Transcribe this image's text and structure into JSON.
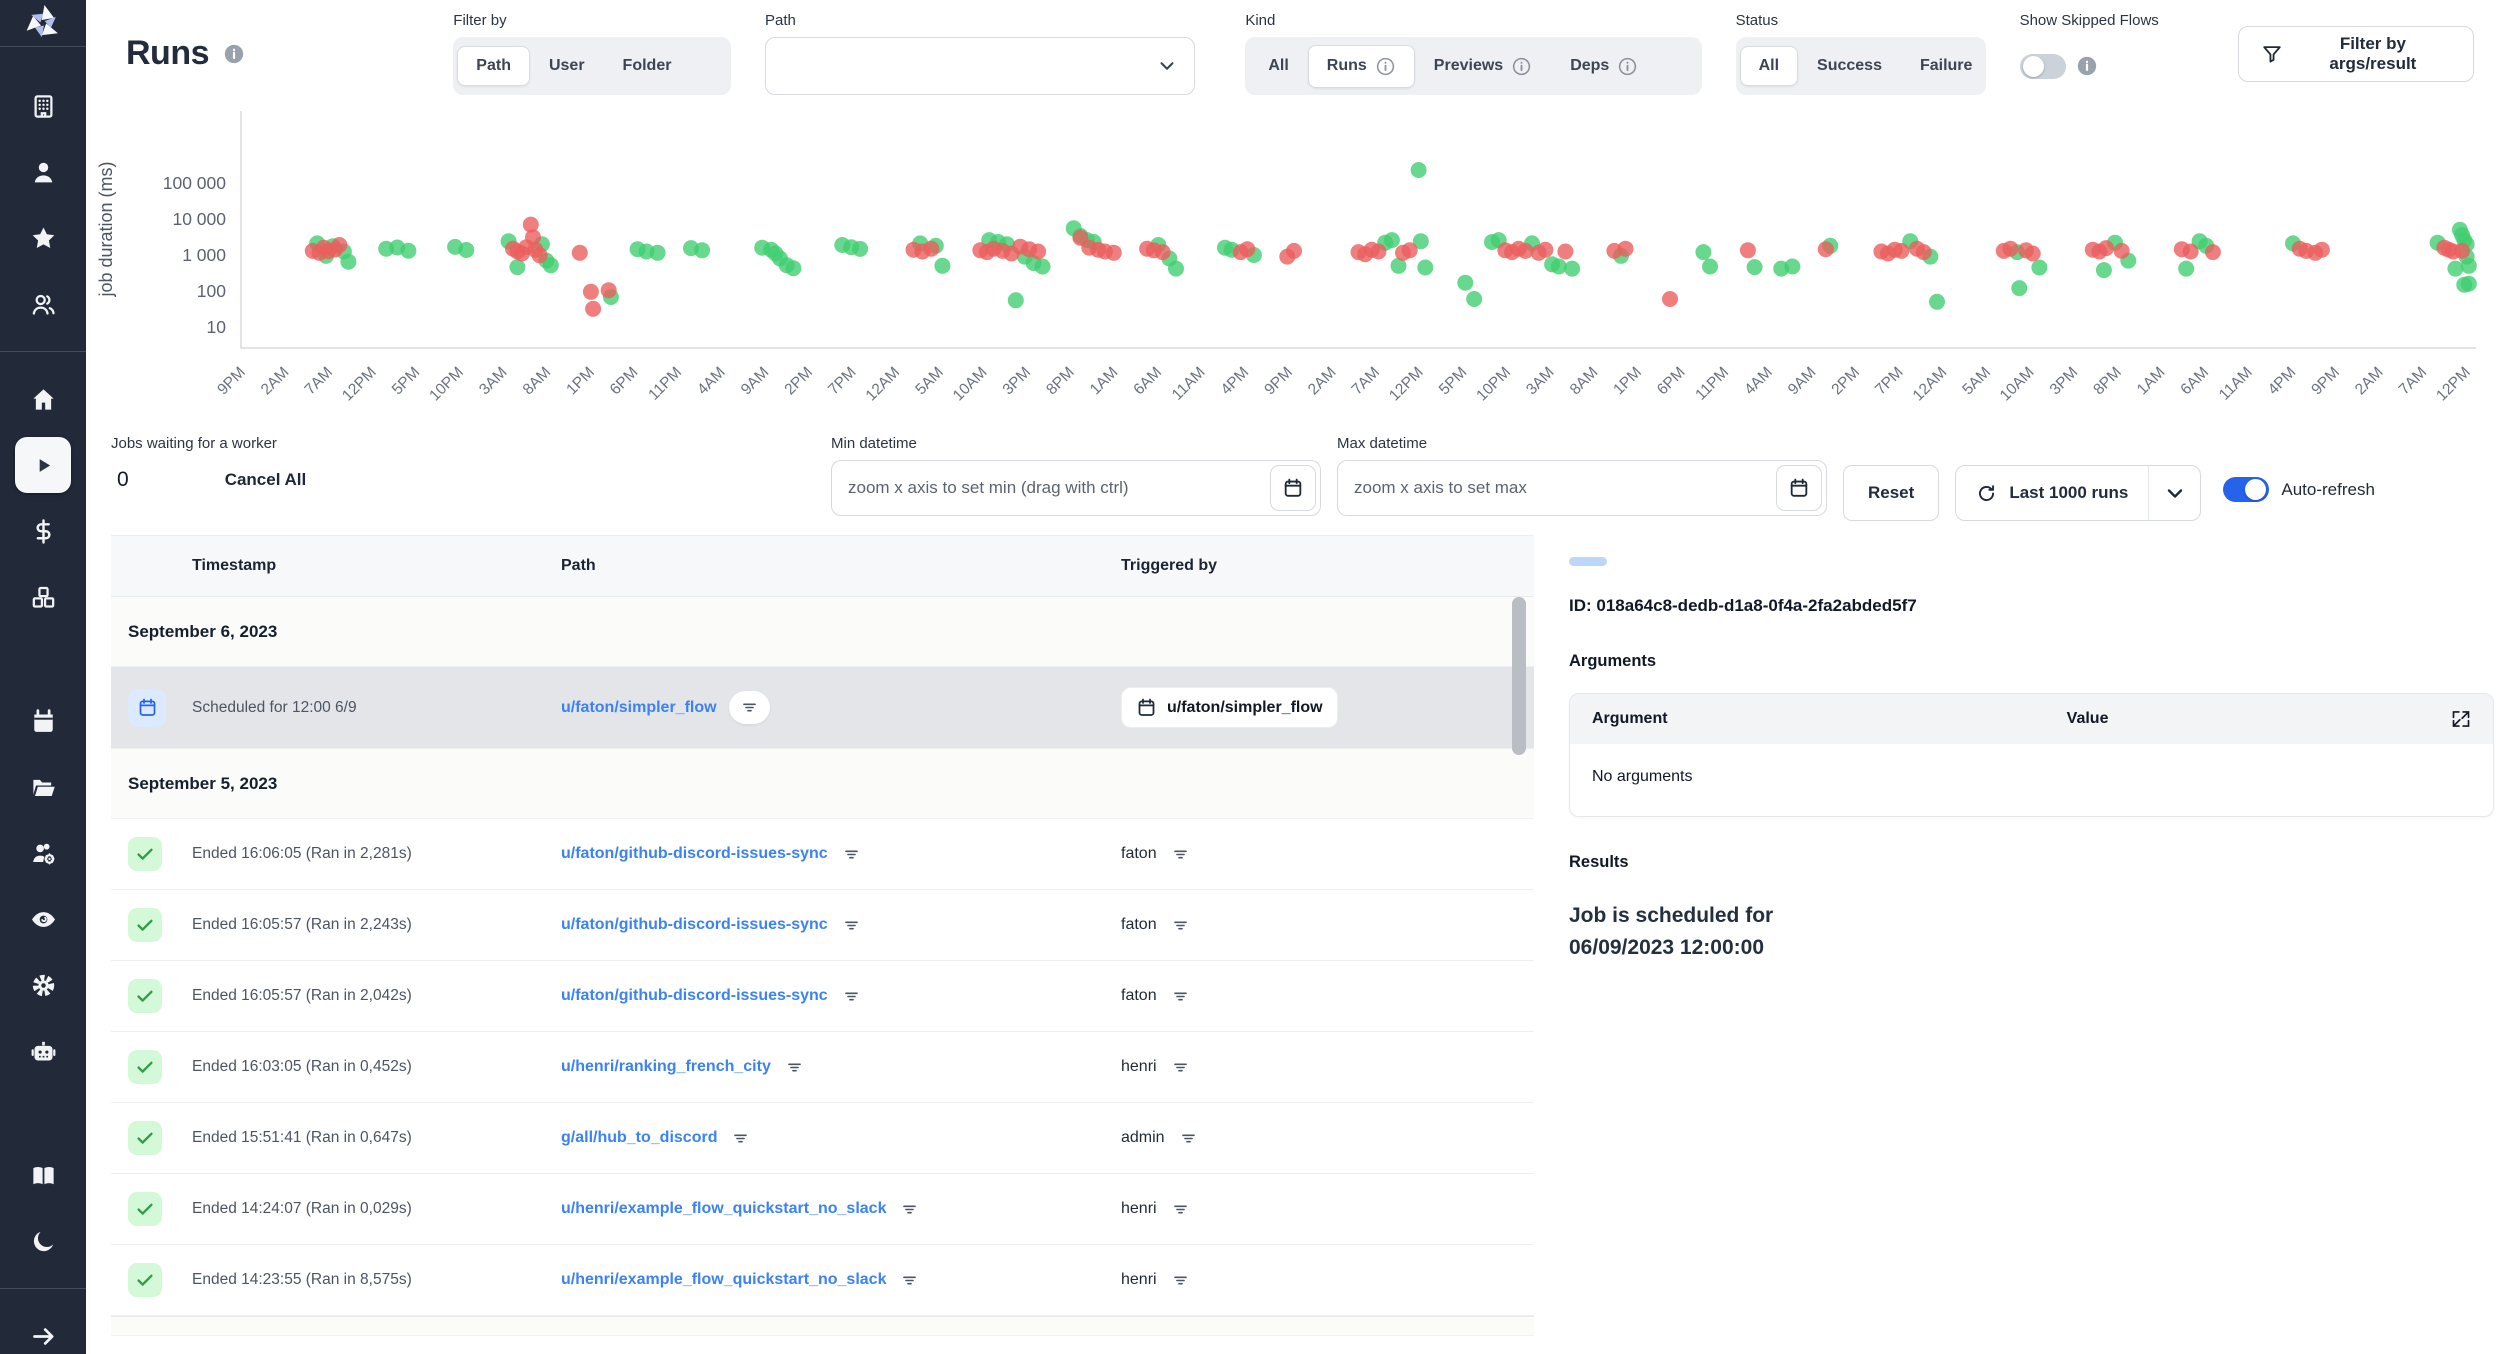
{
  "header": {
    "title": "Runs",
    "filter_by": {
      "label": "Filter by",
      "options": [
        "Path",
        "User",
        "Folder"
      ],
      "selected": "Path"
    },
    "path": {
      "label": "Path",
      "value": ""
    },
    "kind": {
      "label": "Kind",
      "options": [
        {
          "label": "All"
        },
        {
          "label": "Runs",
          "info": true
        },
        {
          "label": "Previews",
          "info": true
        },
        {
          "label": "Deps",
          "info": true
        }
      ],
      "selected": "Runs"
    },
    "status": {
      "label": "Status",
      "options": [
        "All",
        "Success",
        "Failure"
      ],
      "selected": "All"
    },
    "skipped": {
      "label": "Show Skipped Flows",
      "enabled": false
    },
    "args_filter_label": "Filter by args/result"
  },
  "colors": {
    "accent": "#2563eb",
    "link": "#3b82f6",
    "sidebar_bg": "#222938",
    "success_badge_bg": "#d3f9d8",
    "success_check": "#2f9e44"
  },
  "sidebar": {
    "items": [
      {
        "icon": "building"
      },
      {
        "icon": "user"
      },
      {
        "icon": "star"
      },
      {
        "icon": "users"
      },
      {
        "icon": "home",
        "divider_before": true
      },
      {
        "icon": "play",
        "selected": true
      },
      {
        "icon": "dollar"
      },
      {
        "icon": "boxes"
      },
      {
        "icon": "calendar",
        "gap_before": true
      },
      {
        "icon": "folder-open"
      },
      {
        "icon": "users-gear"
      },
      {
        "icon": "eye"
      },
      {
        "icon": "gear"
      },
      {
        "icon": "robot"
      },
      {
        "icon": "book",
        "gap_before": true
      },
      {
        "icon": "moon"
      }
    ],
    "footer_icon": "arrow-right"
  },
  "chart_data": {
    "type": "scatter",
    "ylabel": "job duration (ms)",
    "yscale": "log",
    "yticks": [
      10,
      100,
      1000,
      10000,
      100000
    ],
    "ytick_labels": [
      "10",
      "100",
      "1 000",
      "10 000",
      "100 000"
    ],
    "x_unit": "fraction of visible time range",
    "xticks": [
      "9PM",
      "2AM",
      "7AM",
      "12PM",
      "5PM",
      "10PM",
      "3AM",
      "8AM",
      "1PM",
      "6PM",
      "11PM",
      "4AM",
      "9AM",
      "2PM",
      "7PM",
      "12AM",
      "5AM",
      "10AM",
      "3PM",
      "8PM",
      "1AM",
      "6AM",
      "11AM",
      "4PM",
      "9PM",
      "2AM",
      "7AM",
      "12PM",
      "5PM",
      "10PM",
      "3AM",
      "8AM",
      "1PM",
      "6PM",
      "11PM",
      "4AM",
      "9AM",
      "2PM",
      "7PM",
      "12AM",
      "5AM",
      "10AM",
      "3PM",
      "8PM",
      "1AM",
      "6AM",
      "11AM",
      "4PM",
      "9PM",
      "2AM",
      "7AM",
      "12PM"
    ],
    "series": [
      {
        "name": "success",
        "color": "#41ce70",
        "points": [
          [
            0.032,
            2100
          ],
          [
            0.036,
            950
          ],
          [
            0.039,
            1750
          ],
          [
            0.044,
            1250
          ],
          [
            0.046,
            650
          ],
          [
            0.063,
            1500
          ],
          [
            0.068,
            1620
          ],
          [
            0.073,
            1320
          ],
          [
            0.094,
            1680
          ],
          [
            0.099,
            1380
          ],
          [
            0.118,
            2400
          ],
          [
            0.133,
            2000
          ],
          [
            0.135,
            700
          ],
          [
            0.137,
            520
          ],
          [
            0.122,
            460
          ],
          [
            0.164,
            68
          ],
          [
            0.176,
            1450
          ],
          [
            0.18,
            1250
          ],
          [
            0.185,
            1150
          ],
          [
            0.2,
            1550
          ],
          [
            0.205,
            1350
          ],
          [
            0.232,
            1600
          ],
          [
            0.236,
            1400
          ],
          [
            0.238,
            1100
          ],
          [
            0.24,
            800
          ],
          [
            0.243,
            520
          ],
          [
            0.246,
            430
          ],
          [
            0.268,
            1900
          ],
          [
            0.272,
            1650
          ],
          [
            0.276,
            1480
          ],
          [
            0.303,
            2100
          ],
          [
            0.31,
            1800
          ],
          [
            0.313,
            500
          ],
          [
            0.334,
            2600
          ],
          [
            0.338,
            2300
          ],
          [
            0.342,
            2000
          ],
          [
            0.35,
            900
          ],
          [
            0.354,
            600
          ],
          [
            0.358,
            480
          ],
          [
            0.346,
            55
          ],
          [
            0.372,
            5500
          ],
          [
            0.375,
            3400
          ],
          [
            0.378,
            2600
          ],
          [
            0.381,
            2300
          ],
          [
            0.41,
            1900
          ],
          [
            0.415,
            800
          ],
          [
            0.418,
            420
          ],
          [
            0.44,
            1600
          ],
          [
            0.443,
            1400
          ],
          [
            0.453,
            1000
          ],
          [
            0.512,
            2200
          ],
          [
            0.515,
            2600
          ],
          [
            0.518,
            500
          ],
          [
            0.527,
            230000
          ],
          [
            0.528,
            2400
          ],
          [
            0.53,
            450
          ],
          [
            0.548,
            170
          ],
          [
            0.552,
            60
          ],
          [
            0.56,
            2300
          ],
          [
            0.563,
            2600
          ],
          [
            0.578,
            2100
          ],
          [
            0.587,
            550
          ],
          [
            0.59,
            480
          ],
          [
            0.596,
            420
          ],
          [
            0.618,
            950
          ],
          [
            0.655,
            1200
          ],
          [
            0.658,
            480
          ],
          [
            0.678,
            460
          ],
          [
            0.69,
            420
          ],
          [
            0.695,
            480
          ],
          [
            0.712,
            1800
          ],
          [
            0.748,
            2400
          ],
          [
            0.757,
            900
          ],
          [
            0.76,
            50
          ],
          [
            0.796,
            1200
          ],
          [
            0.806,
            450
          ],
          [
            0.797,
            120
          ],
          [
            0.84,
            2200
          ],
          [
            0.846,
            700
          ],
          [
            0.835,
            380
          ],
          [
            0.878,
            2400
          ],
          [
            0.881,
            1800
          ],
          [
            0.872,
            420
          ],
          [
            0.92,
            2100
          ],
          [
            0.985,
            2200
          ],
          [
            0.995,
            5000
          ],
          [
            0.996,
            3600
          ],
          [
            0.997,
            2600
          ],
          [
            0.998,
            900
          ],
          [
            0.999,
            500
          ],
          [
            0.999,
            160
          ],
          [
            0.997,
            150
          ],
          [
            0.993,
            420
          ],
          [
            0.998,
            2000
          ]
        ]
      },
      {
        "name": "failure",
        "color": "#ea5f5e",
        "points": [
          [
            0.03,
            1300
          ],
          [
            0.033,
            1150
          ],
          [
            0.035,
            1600
          ],
          [
            0.037,
            1280
          ],
          [
            0.04,
            1420
          ],
          [
            0.042,
            1900
          ],
          [
            0.12,
            1500
          ],
          [
            0.122,
            1250
          ],
          [
            0.124,
            1100
          ],
          [
            0.126,
            1650
          ],
          [
            0.128,
            7000
          ],
          [
            0.129,
            3100
          ],
          [
            0.13,
            1400
          ],
          [
            0.132,
            980
          ],
          [
            0.15,
            1150
          ],
          [
            0.155,
            95
          ],
          [
            0.156,
            32
          ],
          [
            0.163,
            105
          ],
          [
            0.3,
            1400
          ],
          [
            0.304,
            1250
          ],
          [
            0.308,
            1500
          ],
          [
            0.33,
            1350
          ],
          [
            0.333,
            1200
          ],
          [
            0.336,
            1500
          ],
          [
            0.34,
            1300
          ],
          [
            0.344,
            1100
          ],
          [
            0.348,
            1700
          ],
          [
            0.352,
            1450
          ],
          [
            0.356,
            1250
          ],
          [
            0.375,
            3000
          ],
          [
            0.379,
            1600
          ],
          [
            0.383,
            1400
          ],
          [
            0.386,
            1250
          ],
          [
            0.39,
            1150
          ],
          [
            0.405,
            1500
          ],
          [
            0.408,
            1350
          ],
          [
            0.412,
            1200
          ],
          [
            0.447,
            1200
          ],
          [
            0.45,
            1450
          ],
          [
            0.468,
            900
          ],
          [
            0.471,
            1300
          ],
          [
            0.5,
            1200
          ],
          [
            0.503,
            1050
          ],
          [
            0.506,
            1400
          ],
          [
            0.509,
            1250
          ],
          [
            0.52,
            1150
          ],
          [
            0.523,
            1350
          ],
          [
            0.566,
            1350
          ],
          [
            0.569,
            1200
          ],
          [
            0.572,
            1500
          ],
          [
            0.575,
            1300
          ],
          [
            0.581,
            1150
          ],
          [
            0.584,
            1400
          ],
          [
            0.593,
            1250
          ],
          [
            0.615,
            1300
          ],
          [
            0.62,
            1500
          ],
          [
            0.64,
            60
          ],
          [
            0.675,
            1350
          ],
          [
            0.71,
            1450
          ],
          [
            0.735,
            1250
          ],
          [
            0.738,
            1100
          ],
          [
            0.741,
            1400
          ],
          [
            0.744,
            1300
          ],
          [
            0.751,
            1500
          ],
          [
            0.754,
            1200
          ],
          [
            0.79,
            1300
          ],
          [
            0.793,
            1500
          ],
          [
            0.8,
            1350
          ],
          [
            0.803,
            1100
          ],
          [
            0.83,
            1400
          ],
          [
            0.833,
            1250
          ],
          [
            0.836,
            1550
          ],
          [
            0.843,
            1300
          ],
          [
            0.87,
            1450
          ],
          [
            0.874,
            1250
          ],
          [
            0.884,
            1200
          ],
          [
            0.923,
            1500
          ],
          [
            0.926,
            1300
          ],
          [
            0.93,
            1150
          ],
          [
            0.933,
            1400
          ],
          [
            0.988,
            1600
          ],
          [
            0.99,
            1400
          ],
          [
            0.992,
            1250
          ],
          [
            0.996,
            1300
          ]
        ]
      }
    ]
  },
  "toolbar": {
    "jobs_waiting_label": "Jobs waiting for a worker",
    "jobs_waiting_count": "0",
    "cancel_all_label": "Cancel All",
    "min_datetime": {
      "label": "Min datetime",
      "placeholder": "zoom x axis to set min (drag with ctrl)"
    },
    "max_datetime": {
      "label": "Max datetime",
      "placeholder": "zoom x axis to set max"
    },
    "reset_label": "Reset",
    "last_runs_label": "Last 1000 runs",
    "auto_refresh_label": "Auto-refresh",
    "auto_refresh_enabled": true
  },
  "table": {
    "columns": [
      "Timestamp",
      "Path",
      "Triggered by"
    ],
    "rows": [
      {
        "type": "group",
        "label": "September 6, 2023"
      },
      {
        "type": "scheduled",
        "selected": true,
        "timestamp": "Scheduled for 12:00 6/9",
        "path": "u/faton/simpler_flow",
        "triggered_by_badge": "u/faton/simpler_flow"
      },
      {
        "type": "group",
        "label": "September 5, 2023"
      },
      {
        "type": "run",
        "status": "success",
        "timestamp": "Ended 16:06:05 (Ran in 2,281s)",
        "path": "u/faton/github-discord-issues-sync",
        "triggered_by": "faton"
      },
      {
        "type": "run",
        "status": "success",
        "timestamp": "Ended 16:05:57 (Ran in 2,243s)",
        "path": "u/faton/github-discord-issues-sync",
        "triggered_by": "faton"
      },
      {
        "type": "run",
        "status": "success",
        "timestamp": "Ended 16:05:57 (Ran in 2,042s)",
        "path": "u/faton/github-discord-issues-sync",
        "triggered_by": "faton"
      },
      {
        "type": "run",
        "status": "success",
        "timestamp": "Ended 16:03:05 (Ran in 0,452s)",
        "path": "u/henri/ranking_french_city",
        "triggered_by": "henri"
      },
      {
        "type": "run",
        "status": "success",
        "timestamp": "Ended 15:51:41 (Ran in 0,647s)",
        "path": "g/all/hub_to_discord",
        "triggered_by": "admin"
      },
      {
        "type": "run",
        "status": "success",
        "timestamp": "Ended 14:24:07 (Ran in 0,029s)",
        "path": "u/henri/example_flow_quickstart_no_slack",
        "triggered_by": "henri"
      },
      {
        "type": "run",
        "status": "success",
        "timestamp": "Ended 14:23:55 (Ran in 8,575s)",
        "path": "u/henri/example_flow_quickstart_no_slack",
        "triggered_by": "henri"
      }
    ]
  },
  "detail": {
    "id_line": "ID: 018a64c8-dedb-d1a8-0f4a-2fa2abded5f7",
    "arguments_title": "Arguments",
    "arguments_table": {
      "col_argument": "Argument",
      "col_value": "Value",
      "empty_text": "No arguments"
    },
    "results_title": "Results",
    "result_text": "Job is scheduled for 06/09/2023 12:00:00"
  }
}
